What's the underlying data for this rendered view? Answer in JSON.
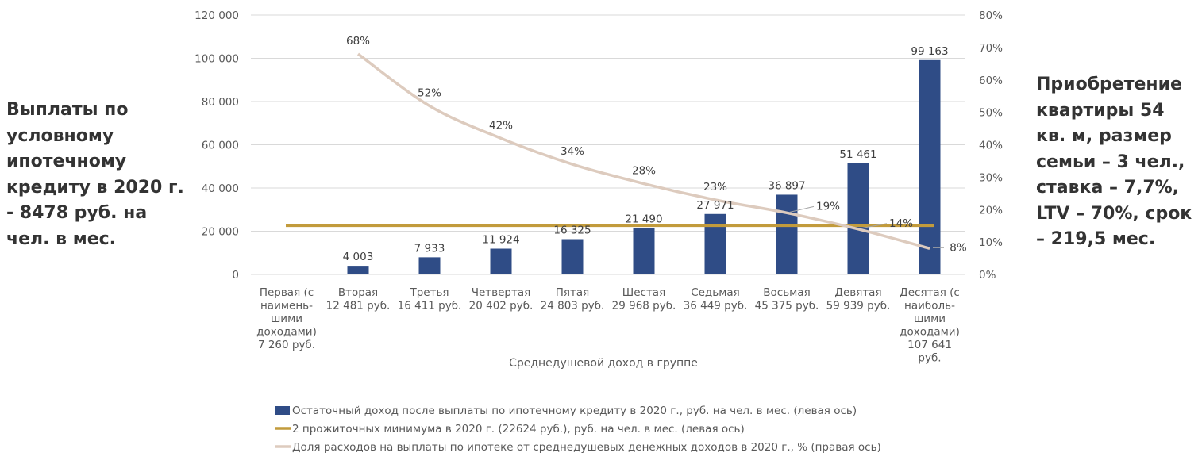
{
  "left_note": "Выплаты по\nусловному\nипотечному\nкредиту в 2020 г.\n- 8478 руб. на\nчел. в мес.",
  "right_note": "Приобретение\nквартиры 54\nкв. м, размер\nсемьи – 3 чел.,\nставка – 7,7%,\nLTV – 70%, срок\n– 219,5 мес.",
  "colors": {
    "bars": "#2F4C86",
    "min_line": "#C29B3C",
    "share_line": "#DDCBBE",
    "grid": "#D9D9D9"
  },
  "chart_data": {
    "type": "bar",
    "xlabel": "Среднедушевой доход в группе",
    "categories": [
      [
        "Первая (с",
        "наимень-",
        "шими",
        "доходами)",
        "7 260 руб."
      ],
      [
        "Вторая",
        "12 481 руб."
      ],
      [
        "Третья",
        "16 411 руб."
      ],
      [
        "Четвертая",
        "20 402 руб."
      ],
      [
        "Пятая",
        "24 803 руб."
      ],
      [
        "Шестая",
        "29 968 руб."
      ],
      [
        "Седьмая",
        "36 449 руб."
      ],
      [
        "Восьмая",
        "45 375 руб."
      ],
      [
        "Девятая",
        "59 939 руб."
      ],
      [
        "Десятая (с",
        "наиболь-",
        "шими",
        "доходами)",
        "107 641",
        "руб."
      ]
    ],
    "y_left": {
      "min": 0,
      "max": 120000,
      "ticks": [
        "0",
        "20 000",
        "40 000",
        "60 000",
        "80 000",
        "100 000",
        "120 000"
      ]
    },
    "y_right": {
      "min": 0,
      "max": 80,
      "ticks": [
        "0%",
        "10%",
        "20%",
        "30%",
        "40%",
        "50%",
        "60%",
        "70%",
        "80%"
      ]
    },
    "series": [
      {
        "name": "Остаточный доход после выплаты по ипотечному кредиту в 2020 г., руб. на чел. в мес. (левая ось)",
        "kind": "bar",
        "axis": "left",
        "values": [
          null,
          4003,
          7933,
          11924,
          16325,
          21490,
          27971,
          36897,
          51461,
          99163
        ],
        "labels": [
          "",
          "4 003",
          "7 933",
          "11 924",
          "16 325",
          "21 490",
          "27 971",
          "36 897",
          "51 461",
          "99 163"
        ]
      },
      {
        "name": "2 прожиточных минимума в 2020 г. (22624 руб.), руб. на чел. в мес. (левая ось)",
        "kind": "line",
        "axis": "left",
        "values": [
          22624,
          22624,
          22624,
          22624,
          22624,
          22624,
          22624,
          22624,
          22624,
          22624
        ]
      },
      {
        "name": "Доля расходов на выплаты по ипотеке от среднедушевых денежных доходов в 2020 г., % (правая ось)",
        "kind": "line",
        "axis": "right",
        "values": [
          null,
          68,
          52,
          42,
          34,
          28,
          23,
          19,
          14,
          8
        ],
        "labels": [
          "",
          "68%",
          "52%",
          "42%",
          "34%",
          "28%",
          "23%",
          "19%",
          "14%",
          "8%"
        ]
      }
    ],
    "grid": true,
    "legend_position": "bottom"
  }
}
